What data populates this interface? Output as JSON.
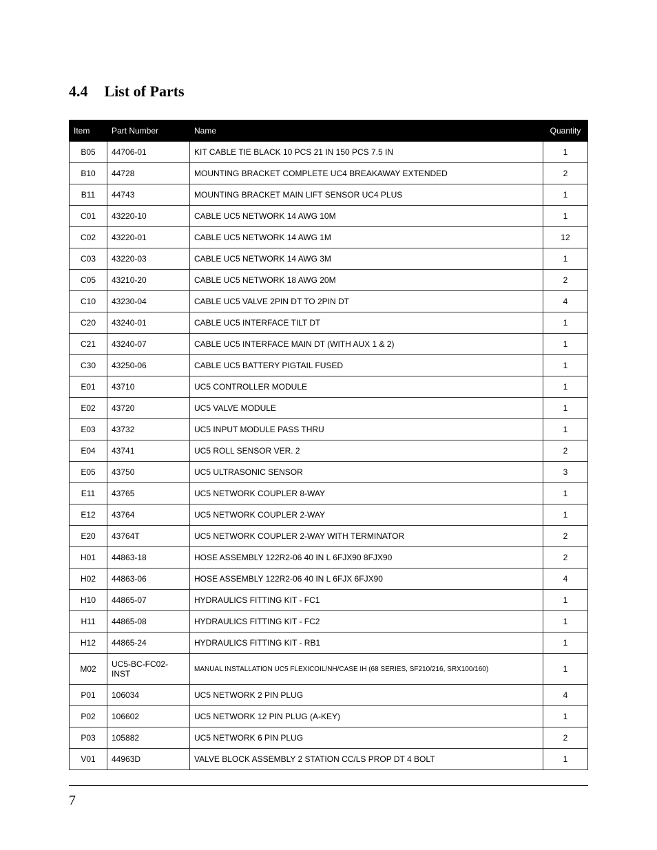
{
  "heading": {
    "number": "4.4",
    "title": "List of Parts"
  },
  "table": {
    "columns": [
      "Item",
      "Part Number",
      "Name",
      "Quantity"
    ],
    "rows": [
      {
        "item": "B05",
        "part": "44706-01",
        "name": "KIT CABLE TIE BLACK 10 PCS 21 IN  150 PCS 7.5 IN",
        "qty": "1"
      },
      {
        "item": "B10",
        "part": "44728",
        "name": "MOUNTING BRACKET COMPLETE UC4 BREAKAWAY EXTENDED",
        "qty": "2"
      },
      {
        "item": "B11",
        "part": "44743",
        "name": "MOUNTING BRACKET MAIN LIFT SENSOR UC4 PLUS",
        "qty": "1"
      },
      {
        "item": "C01",
        "part": "43220-10",
        "name": "CABLE UC5 NETWORK 14 AWG 10M",
        "qty": "1"
      },
      {
        "item": "C02",
        "part": "43220-01",
        "name": "CABLE UC5 NETWORK 14 AWG 1M",
        "qty": "12"
      },
      {
        "item": "C03",
        "part": "43220-03",
        "name": "CABLE UC5 NETWORK 14 AWG 3M",
        "qty": "1"
      },
      {
        "item": "C05",
        "part": "43210-20",
        "name": "CABLE UC5 NETWORK 18 AWG 20M",
        "qty": "2"
      },
      {
        "item": "C10",
        "part": "43230-04",
        "name": "CABLE UC5 VALVE 2PIN DT TO 2PIN DT",
        "qty": "4"
      },
      {
        "item": "C20",
        "part": "43240-01",
        "name": "CABLE UC5 INTERFACE TILT DT",
        "qty": "1"
      },
      {
        "item": "C21",
        "part": "43240-07",
        "name": "CABLE UC5 INTERFACE MAIN DT (WITH AUX 1 & 2)",
        "qty": "1"
      },
      {
        "item": "C30",
        "part": "43250-06",
        "name": "CABLE UC5 BATTERY PIGTAIL FUSED",
        "qty": "1"
      },
      {
        "item": "E01",
        "part": "43710",
        "name": "UC5 CONTROLLER MODULE",
        "qty": "1"
      },
      {
        "item": "E02",
        "part": "43720",
        "name": "UC5 VALVE MODULE",
        "qty": "1"
      },
      {
        "item": "E03",
        "part": "43732",
        "name": "UC5 INPUT MODULE PASS THRU",
        "qty": "1"
      },
      {
        "item": "E04",
        "part": "43741",
        "name": "UC5 ROLL SENSOR VER. 2",
        "qty": "2"
      },
      {
        "item": "E05",
        "part": "43750",
        "name": "UC5 ULTRASONIC SENSOR",
        "qty": "3"
      },
      {
        "item": "E11",
        "part": "43765",
        "name": "UC5 NETWORK COUPLER 8-WAY",
        "qty": "1"
      },
      {
        "item": "E12",
        "part": "43764",
        "name": "UC5 NETWORK COUPLER 2-WAY",
        "qty": "1"
      },
      {
        "item": "E20",
        "part": "43764T",
        "name": "UC5 NETWORK COUPLER 2-WAY WITH TERMINATOR",
        "qty": "2"
      },
      {
        "item": "H01",
        "part": "44863-18",
        "name": "HOSE ASSEMBLY 122R2-06 40 IN L 6FJX90 8FJX90",
        "qty": "2"
      },
      {
        "item": "H02",
        "part": "44863-06",
        "name": "HOSE ASSEMBLY 122R2-06 40 IN L 6FJX 6FJX90",
        "qty": "4"
      },
      {
        "item": "H10",
        "part": "44865-07",
        "name": "HYDRAULICS FITTING KIT - FC1",
        "qty": "1"
      },
      {
        "item": "H11",
        "part": "44865-08",
        "name": "HYDRAULICS FITTING KIT - FC2",
        "qty": "1"
      },
      {
        "item": "H12",
        "part": "44865-24",
        "name": "HYDRAULICS FITTING KIT - RB1",
        "qty": "1"
      },
      {
        "item": "M02",
        "part": "UC5-BC-FC02-INST",
        "name": "MANUAL INSTALLATION UC5 FLEXICOIL/NH/CASE IH (68 SERIES, SF210/216, SRX100/160)",
        "qty": "1",
        "small": true
      },
      {
        "item": "P01",
        "part": "106034",
        "name": "UC5 NETWORK 2 PIN PLUG",
        "qty": "4"
      },
      {
        "item": "P02",
        "part": "106602",
        "name": "UC5 NETWORK 12 PIN PLUG (A-KEY)",
        "qty": "1"
      },
      {
        "item": "P03",
        "part": "105882",
        "name": "UC5 NETWORK 6 PIN PLUG",
        "qty": "2"
      },
      {
        "item": "V01",
        "part": "44963D",
        "name": "VALVE BLOCK ASSEMBLY 2 STATION CC/LS PROP DT 4 BOLT",
        "qty": "1"
      }
    ]
  },
  "page_number": "7",
  "styling": {
    "body_bg": "#ffffff",
    "heading_fontsize": 22,
    "heading_font": "Georgia, serif",
    "table_header_bg": "#000000",
    "table_header_color": "#ffffff",
    "table_border_color": "#000000",
    "cell_fontsize": 12,
    "cell_fontsize_small": 10,
    "page_number_fontsize": 20,
    "col_widths": {
      "item": 55,
      "part": 120,
      "qty": 65
    }
  }
}
